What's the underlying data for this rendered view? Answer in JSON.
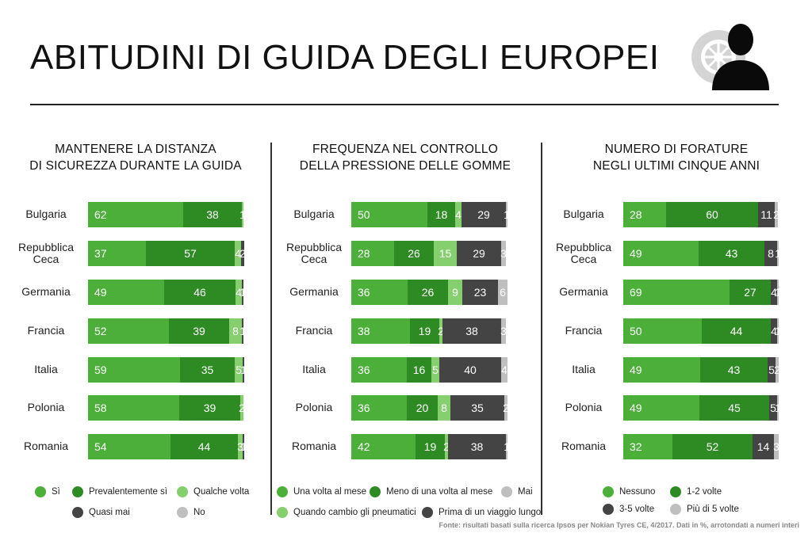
{
  "title": "ABITUDINI DI GUIDA DEGLI EUROPEI",
  "source": "Fonte: risultati basati sulla ricerca Ipsos per Nokian Tyres CE, 4/2017. Dati in %, arrotondati a numeri interi",
  "icons": {
    "logo": "tyre-and-person-icon"
  },
  "colors": {
    "c1": "#4caf3a",
    "c2": "#2e8b24",
    "c3": "#86cf6e",
    "c4": "#444444",
    "c5": "#bfbfbf"
  },
  "chart_data": [
    {
      "type": "bar",
      "stacked": true,
      "title_lines": [
        "MANTENERE LA DISTANZA",
        "DI SICUREZZA DURANTE LA GUIDA"
      ],
      "categories": [
        "Bulgaria",
        "Repubblica Ceca",
        "Germania",
        "Francia",
        "Italia",
        "Polonia",
        "Romania"
      ],
      "series": [
        {
          "name": "Sì",
          "color": "#4caf3a",
          "values": [
            62,
            37,
            49,
            52,
            59,
            58,
            54
          ]
        },
        {
          "name": "Prevalentemente sì",
          "color": "#2e8b24",
          "values": [
            38,
            57,
            46,
            39,
            35,
            39,
            44
          ]
        },
        {
          "name": "Qualche volta",
          "color": "#86cf6e",
          "values": [
            1,
            4,
            4,
            8,
            5,
            2,
            3
          ]
        },
        {
          "name": "Quasi mai",
          "color": "#444444",
          "values": [
            0,
            2,
            1,
            1,
            1,
            0,
            1
          ]
        },
        {
          "name": "No",
          "color": "#bfbfbf",
          "values": [
            0,
            0,
            0,
            0,
            0,
            0,
            0
          ]
        }
      ]
    },
    {
      "type": "bar",
      "stacked": true,
      "title_lines": [
        "FREQUENZA NEL CONTROLLO",
        "DELLA PRESSIONE DELLE GOMME"
      ],
      "categories": [
        "Bulgaria",
        "Repubblica Ceca",
        "Germania",
        "Francia",
        "Italia",
        "Polonia",
        "Romania"
      ],
      "series": [
        {
          "name": "Una volta al mese",
          "color": "#4caf3a",
          "values": [
            50,
            28,
            36,
            38,
            36,
            36,
            42
          ]
        },
        {
          "name": "Meno di una volta al mese",
          "color": "#2e8b24",
          "values": [
            18,
            26,
            26,
            19,
            16,
            20,
            19
          ]
        },
        {
          "name": "Quando cambio gli pneumatici",
          "color": "#86cf6e",
          "values": [
            4,
            15,
            9,
            2,
            5,
            8,
            2
          ]
        },
        {
          "name": "Prima di un viaggio lungo",
          "color": "#444444",
          "values": [
            29,
            29,
            23,
            38,
            40,
            35,
            38
          ]
        },
        {
          "name": "Mai",
          "color": "#bfbfbf",
          "values": [
            1,
            3,
            6,
            3,
            4,
            2,
            1
          ]
        }
      ]
    },
    {
      "type": "bar",
      "stacked": true,
      "title_lines": [
        "NUMERO DI FORATURE",
        "NEGLI ULTIMI CINQUE ANNI"
      ],
      "categories": [
        "Bulgaria",
        "Repubblica Ceca",
        "Germania",
        "Francia",
        "Italia",
        "Polonia",
        "Romania"
      ],
      "series": [
        {
          "name": "Nessuno",
          "color": "#4caf3a",
          "values": [
            28,
            49,
            69,
            50,
            49,
            49,
            32
          ]
        },
        {
          "name": "1-2 volte",
          "color": "#2e8b24",
          "values": [
            60,
            43,
            27,
            44,
            43,
            45,
            52
          ]
        },
        {
          "name": "3-5 volte",
          "color": "#444444",
          "values": [
            11,
            8,
            4,
            4,
            5,
            5,
            14
          ]
        },
        {
          "name": "Più di 5 volte",
          "color": "#bfbfbf",
          "values": [
            2,
            1,
            1,
            1,
            2,
            1,
            3
          ]
        }
      ]
    }
  ]
}
